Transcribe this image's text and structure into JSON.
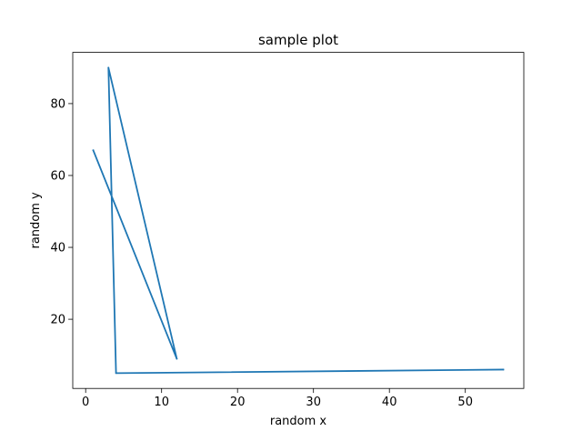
{
  "chart_data": {
    "type": "line",
    "title": "sample plot",
    "xlabel": "random x",
    "ylabel": "random y",
    "xlim": [
      -1.7,
      57.7
    ],
    "ylim": [
      0.75,
      94.25
    ],
    "xticks": [
      0,
      10,
      20,
      30,
      40,
      50
    ],
    "yticks": [
      20,
      40,
      60,
      80
    ],
    "grid": false,
    "line_color": "#1f77b4",
    "series": [
      {
        "x": [
          1,
          12,
          3,
          4,
          55
        ],
        "y": [
          67,
          9,
          90,
          5,
          6
        ]
      }
    ]
  }
}
